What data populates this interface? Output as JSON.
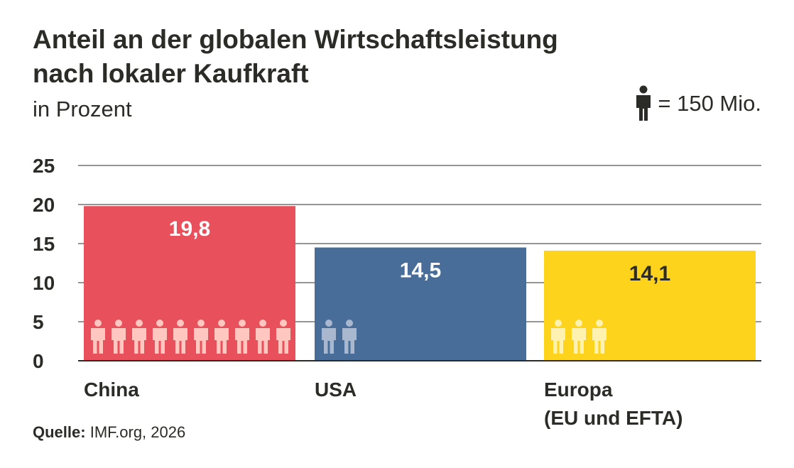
{
  "title_lines": [
    "Anteil an der globalen Wirtschaftsleistung",
    "nach lokaler Kaufkraft"
  ],
  "subtitle": "in Prozent",
  "legend": {
    "icon": "person-icon",
    "text": "= 150 Mio."
  },
  "source": {
    "label": "Quelle:",
    "text": "IMF.org, 2026"
  },
  "chart_data": {
    "type": "bar",
    "title": "Anteil an der globalen Wirtschaftsleistung nach lokaler Kaufkraft",
    "subtitle": "in Prozent",
    "categories": [
      [
        "China"
      ],
      [
        "USA"
      ],
      [
        "Europa",
        "(EU und EFTA)"
      ]
    ],
    "values": [
      19.8,
      14.5,
      14.1
    ],
    "value_labels": [
      "19,8",
      "14,5",
      "14,1"
    ],
    "people_icons": [
      10,
      2,
      3
    ],
    "colors": [
      "#e8505b",
      "#476d98",
      "#fdd31c"
    ],
    "icon_colors": [
      "#ffc7c0",
      "#aab8cf",
      "#fff2b0"
    ],
    "value_label_colors": [
      "#ffffff",
      "#ffffff",
      "#2b2b27"
    ],
    "yticks": [
      0,
      5,
      10,
      15,
      20,
      25
    ],
    "ylim": [
      0,
      25
    ],
    "grid": true
  }
}
